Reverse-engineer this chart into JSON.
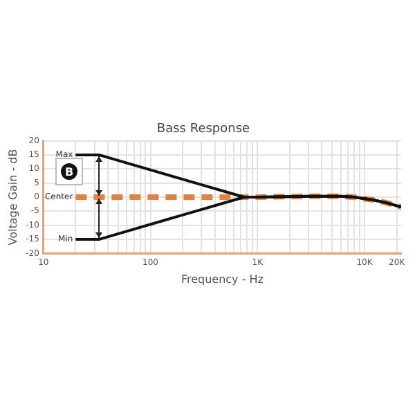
{
  "chart_data": {
    "type": "line",
    "title": "Bass Response",
    "xlabel": "Frequency - Hz",
    "ylabel": "Voltage Gain - dB",
    "x": [
      20,
      33,
      750,
      1000,
      3000,
      6000,
      8000,
      12000,
      16000,
      22000
    ],
    "series": [
      {
        "name": "Max",
        "color": "#111111",
        "values": [
          15,
          15,
          0,
          0,
          0.3,
          0.3,
          0,
          -1,
          -2,
          -3.5
        ]
      },
      {
        "name": "Min",
        "color": "#111111",
        "values": [
          -15,
          -15,
          0,
          0,
          0.3,
          0.3,
          0,
          -1,
          -2,
          -3.5
        ]
      },
      {
        "name": "Center",
        "color": "#e8803a",
        "line_style": "dashed",
        "values": [
          0,
          0,
          0,
          0,
          0.3,
          0.3,
          0,
          -1,
          -2,
          -3.5
        ]
      }
    ],
    "log": "x",
    "xlim": [
      10,
      22000
    ],
    "xticks": [
      10,
      {
        "value": 20,
        "label": null
      },
      {
        "value": 30,
        "label": null
      },
      {
        "value": 40,
        "label": null
      },
      {
        "value": 50,
        "label": null
      },
      {
        "value": 60,
        "label": null
      },
      {
        "value": 70,
        "label": null
      },
      {
        "value": 80,
        "label": null
      },
      {
        "value": 90,
        "label": null
      },
      100,
      {
        "value": 200,
        "label": null
      },
      {
        "value": 300,
        "label": null
      },
      {
        "value": 400,
        "label": null
      },
      {
        "value": 500,
        "label": null
      },
      {
        "value": 600,
        "label": null
      },
      {
        "value": 700,
        "label": null
      },
      {
        "value": 800,
        "label": null
      },
      {
        "value": 900,
        "label": null
      },
      {
        "value": 1000,
        "label": "1K"
      },
      {
        "value": 2000,
        "label": null
      },
      {
        "value": 3000,
        "label": null
      },
      {
        "value": 4000,
        "label": null
      },
      {
        "value": 5000,
        "label": null
      },
      {
        "value": 6000,
        "label": null
      },
      {
        "value": 7000,
        "label": null
      },
      {
        "value": 8000,
        "label": null
      },
      {
        "value": 9000,
        "label": null
      },
      {
        "value": 10000,
        "label": "10K"
      },
      {
        "value": 20000,
        "label": "20K"
      }
    ],
    "ylim": [
      -20,
      20
    ],
    "yticks": [
      -20,
      -15,
      -10,
      -5,
      0,
      5,
      10,
      15,
      20
    ],
    "grid": true,
    "legend": false,
    "marker": "none",
    "annotations": [
      "B"
    ]
  }
}
